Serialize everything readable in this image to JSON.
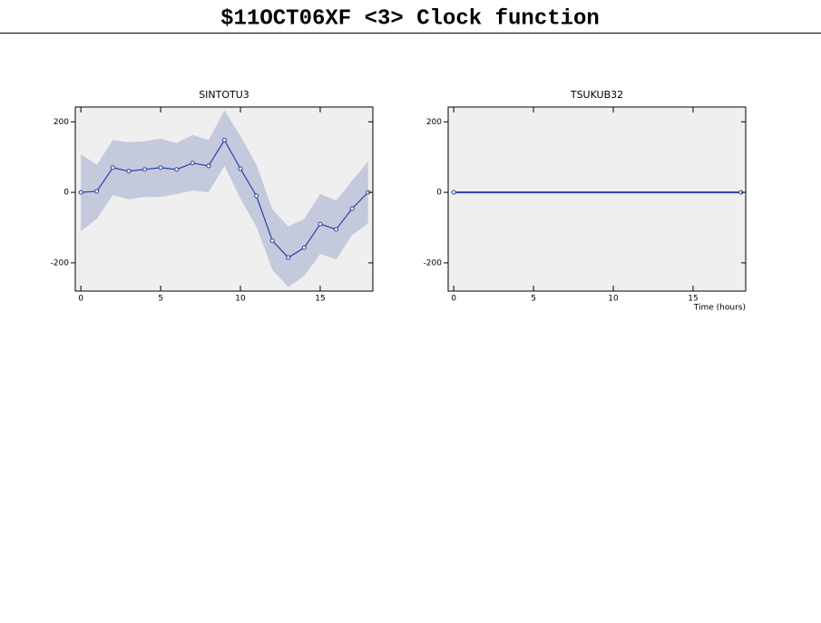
{
  "title": "$11OCT06XF <3>  Clock function",
  "chart_data": [
    {
      "type": "line",
      "title": "SINTOTU3",
      "x": [
        0,
        1,
        2,
        3,
        4,
        5,
        6,
        7,
        8,
        9,
        10,
        11,
        12,
        13,
        14,
        15,
        16,
        17,
        18
      ],
      "series": [
        {
          "color": "#2840a8",
          "values": [
            0,
            3,
            70,
            60,
            65,
            70,
            65,
            83,
            75,
            148,
            67,
            -10,
            -137,
            -185,
            -157,
            -90,
            -105,
            -46,
            0
          ]
        }
      ],
      "band": {
        "color": "#c5c9dc",
        "upper": [
          108,
          78,
          148,
          142,
          145,
          152,
          140,
          163,
          148,
          232,
          160,
          78,
          -48,
          -97,
          -75,
          -5,
          -23,
          33,
          88
        ],
        "lower": [
          -110,
          -75,
          -8,
          -20,
          -13,
          -13,
          -5,
          5,
          0,
          75,
          -18,
          -97,
          -220,
          -268,
          -237,
          -175,
          -190,
          -121,
          -88
        ]
      },
      "xlim": [
        -0.35,
        18.3
      ],
      "ylim": [
        -280,
        242
      ],
      "xticks": [
        0,
        5,
        10,
        15
      ],
      "yticks": [
        -200,
        0,
        200
      ]
    },
    {
      "type": "line",
      "title": "TSUKUB32",
      "xlabel": "Time (hours)",
      "x": [
        0,
        18
      ],
      "series": [
        {
          "color": "#2840a8",
          "values": [
            0,
            0
          ]
        }
      ],
      "xlim": [
        -0.35,
        18.3
      ],
      "ylim": [
        -280,
        242
      ],
      "xticks": [
        0,
        5,
        10,
        15
      ],
      "yticks": [
        -200,
        0,
        200
      ]
    }
  ]
}
